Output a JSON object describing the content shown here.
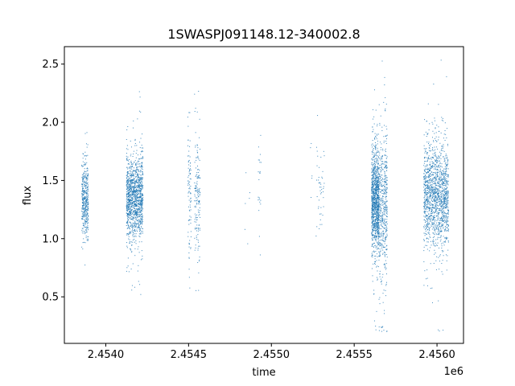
{
  "chart_data": {
    "type": "scatter",
    "title": "1SWASPJ091148.12-340002.8",
    "xlabel": "time",
    "ylabel": "flux",
    "x_offset_label": "1e6",
    "xlim": [
      2.45375,
      2.45616
    ],
    "ylim": [
      0.1,
      2.65
    ],
    "x_ticks": [
      2.454,
      2.4545,
      2.455,
      2.4555,
      2.456
    ],
    "x_tick_labels": [
      "2.4540",
      "2.4545",
      "2.4550",
      "2.4555",
      "2.4560"
    ],
    "y_ticks": [
      0.5,
      1.0,
      1.5,
      2.0,
      2.5
    ],
    "y_tick_labels": [
      "0.5",
      "1.0",
      "1.5",
      "2.0",
      "2.5"
    ],
    "grid": false,
    "marker_color": "#1f77b4",
    "series": [
      {
        "clusters": [
          {
            "x_range": [
              2.453855,
              2.453895
            ],
            "n": 420,
            "center": 1.33,
            "spread": 0.15
          },
          {
            "x_range": [
              2.454125,
              2.454225
            ],
            "n": 1300,
            "center": 1.35,
            "spread": 0.18
          },
          {
            "x_range": [
              2.454495,
              2.454515
            ],
            "n": 90,
            "center": 1.38,
            "spread": 0.28
          },
          {
            "x_range": [
              2.454535,
              2.45457
            ],
            "n": 160,
            "center": 1.35,
            "spread": 0.3
          },
          {
            "x_range": [
              2.45484,
              2.45487
            ],
            "n": 6,
            "center": 1.25,
            "spread": 0.18
          },
          {
            "x_range": [
              2.45492,
              2.45494
            ],
            "n": 22,
            "center": 1.45,
            "spread": 0.25
          },
          {
            "x_range": [
              2.45523,
              2.45525
            ],
            "n": 5,
            "center": 1.5,
            "spread": 0.25
          },
          {
            "x_range": [
              2.45527,
              2.45532
            ],
            "n": 45,
            "center": 1.45,
            "spread": 0.25
          },
          {
            "x_range": [
              2.455605,
              2.45565
            ],
            "n": 1100,
            "center": 1.32,
            "spread": 0.22
          },
          {
            "x_range": [
              2.45565,
              2.4557
            ],
            "n": 500,
            "center": 1.28,
            "spread": 0.32
          },
          {
            "x_range": [
              2.45592,
              2.45607
            ],
            "n": 1500,
            "center": 1.37,
            "spread": 0.22
          }
        ]
      }
    ]
  }
}
